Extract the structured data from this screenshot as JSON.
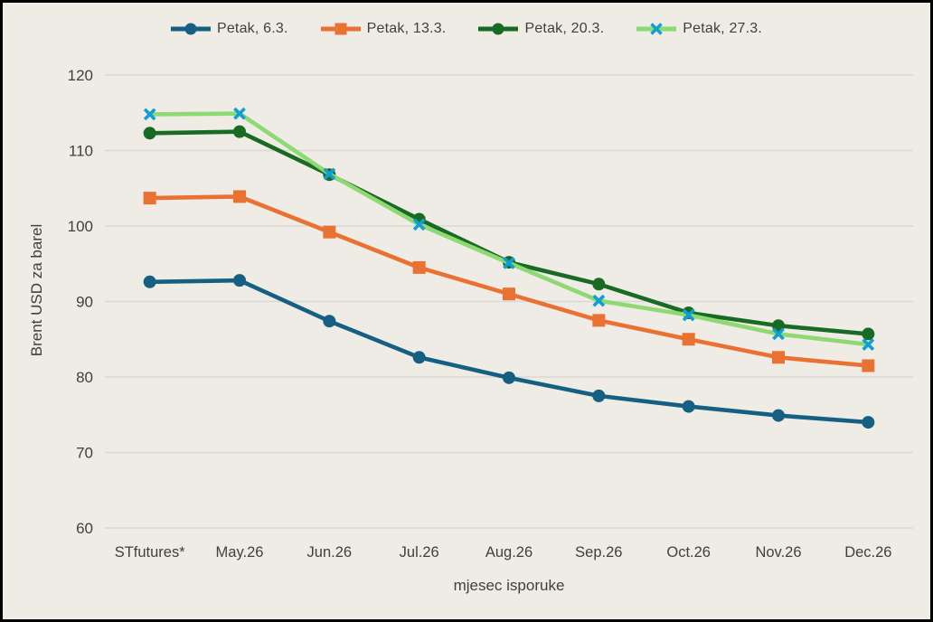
{
  "page": {
    "background_color": "#EFECE6",
    "border_color": "#000000",
    "text_color": "#3F3F3F"
  },
  "chart_data": {
    "type": "line",
    "title": "",
    "xlabel": "mjesec isporuke",
    "ylabel": "Brent USD za barel",
    "categories": [
      "STfutures*",
      "May.26",
      "Jun.26",
      "Jul.26",
      "Aug.26",
      "Sep.26",
      "Oct.26",
      "Nov.26",
      "Dec.26"
    ],
    "series": [
      {
        "name": "Petak, 6.3.",
        "color": "#156082",
        "marker": "circle",
        "marker_color": "#156082",
        "values": [
          92.6,
          92.8,
          87.4,
          82.6,
          79.9,
          77.5,
          76.1,
          74.9,
          74.0
        ]
      },
      {
        "name": "Petak, 13.3.",
        "color": "#E97132",
        "marker": "square",
        "marker_color": "#E97132",
        "values": [
          103.7,
          103.9,
          99.2,
          94.5,
          91.0,
          87.5,
          85.0,
          82.6,
          81.5
        ]
      },
      {
        "name": "Petak, 20.3.",
        "color": "#196B24",
        "marker": "circle",
        "marker_color": "#196B24",
        "values": [
          112.3,
          112.5,
          106.8,
          100.9,
          95.2,
          92.3,
          88.5,
          86.8,
          85.7
        ]
      },
      {
        "name": "Petak, 27.3.",
        "color": "#8ED973",
        "marker": "x",
        "marker_color": "#0F9ED5",
        "values": [
          114.8,
          114.9,
          106.9,
          100.2,
          95.1,
          90.1,
          88.2,
          85.7,
          84.3
        ]
      }
    ],
    "ylim": [
      60,
      120
    ],
    "yticks": [
      60,
      70,
      80,
      90,
      100,
      110,
      120
    ],
    "grid": "horizontal",
    "gridline_color": "#D9D8D3",
    "legend_position": "top"
  }
}
